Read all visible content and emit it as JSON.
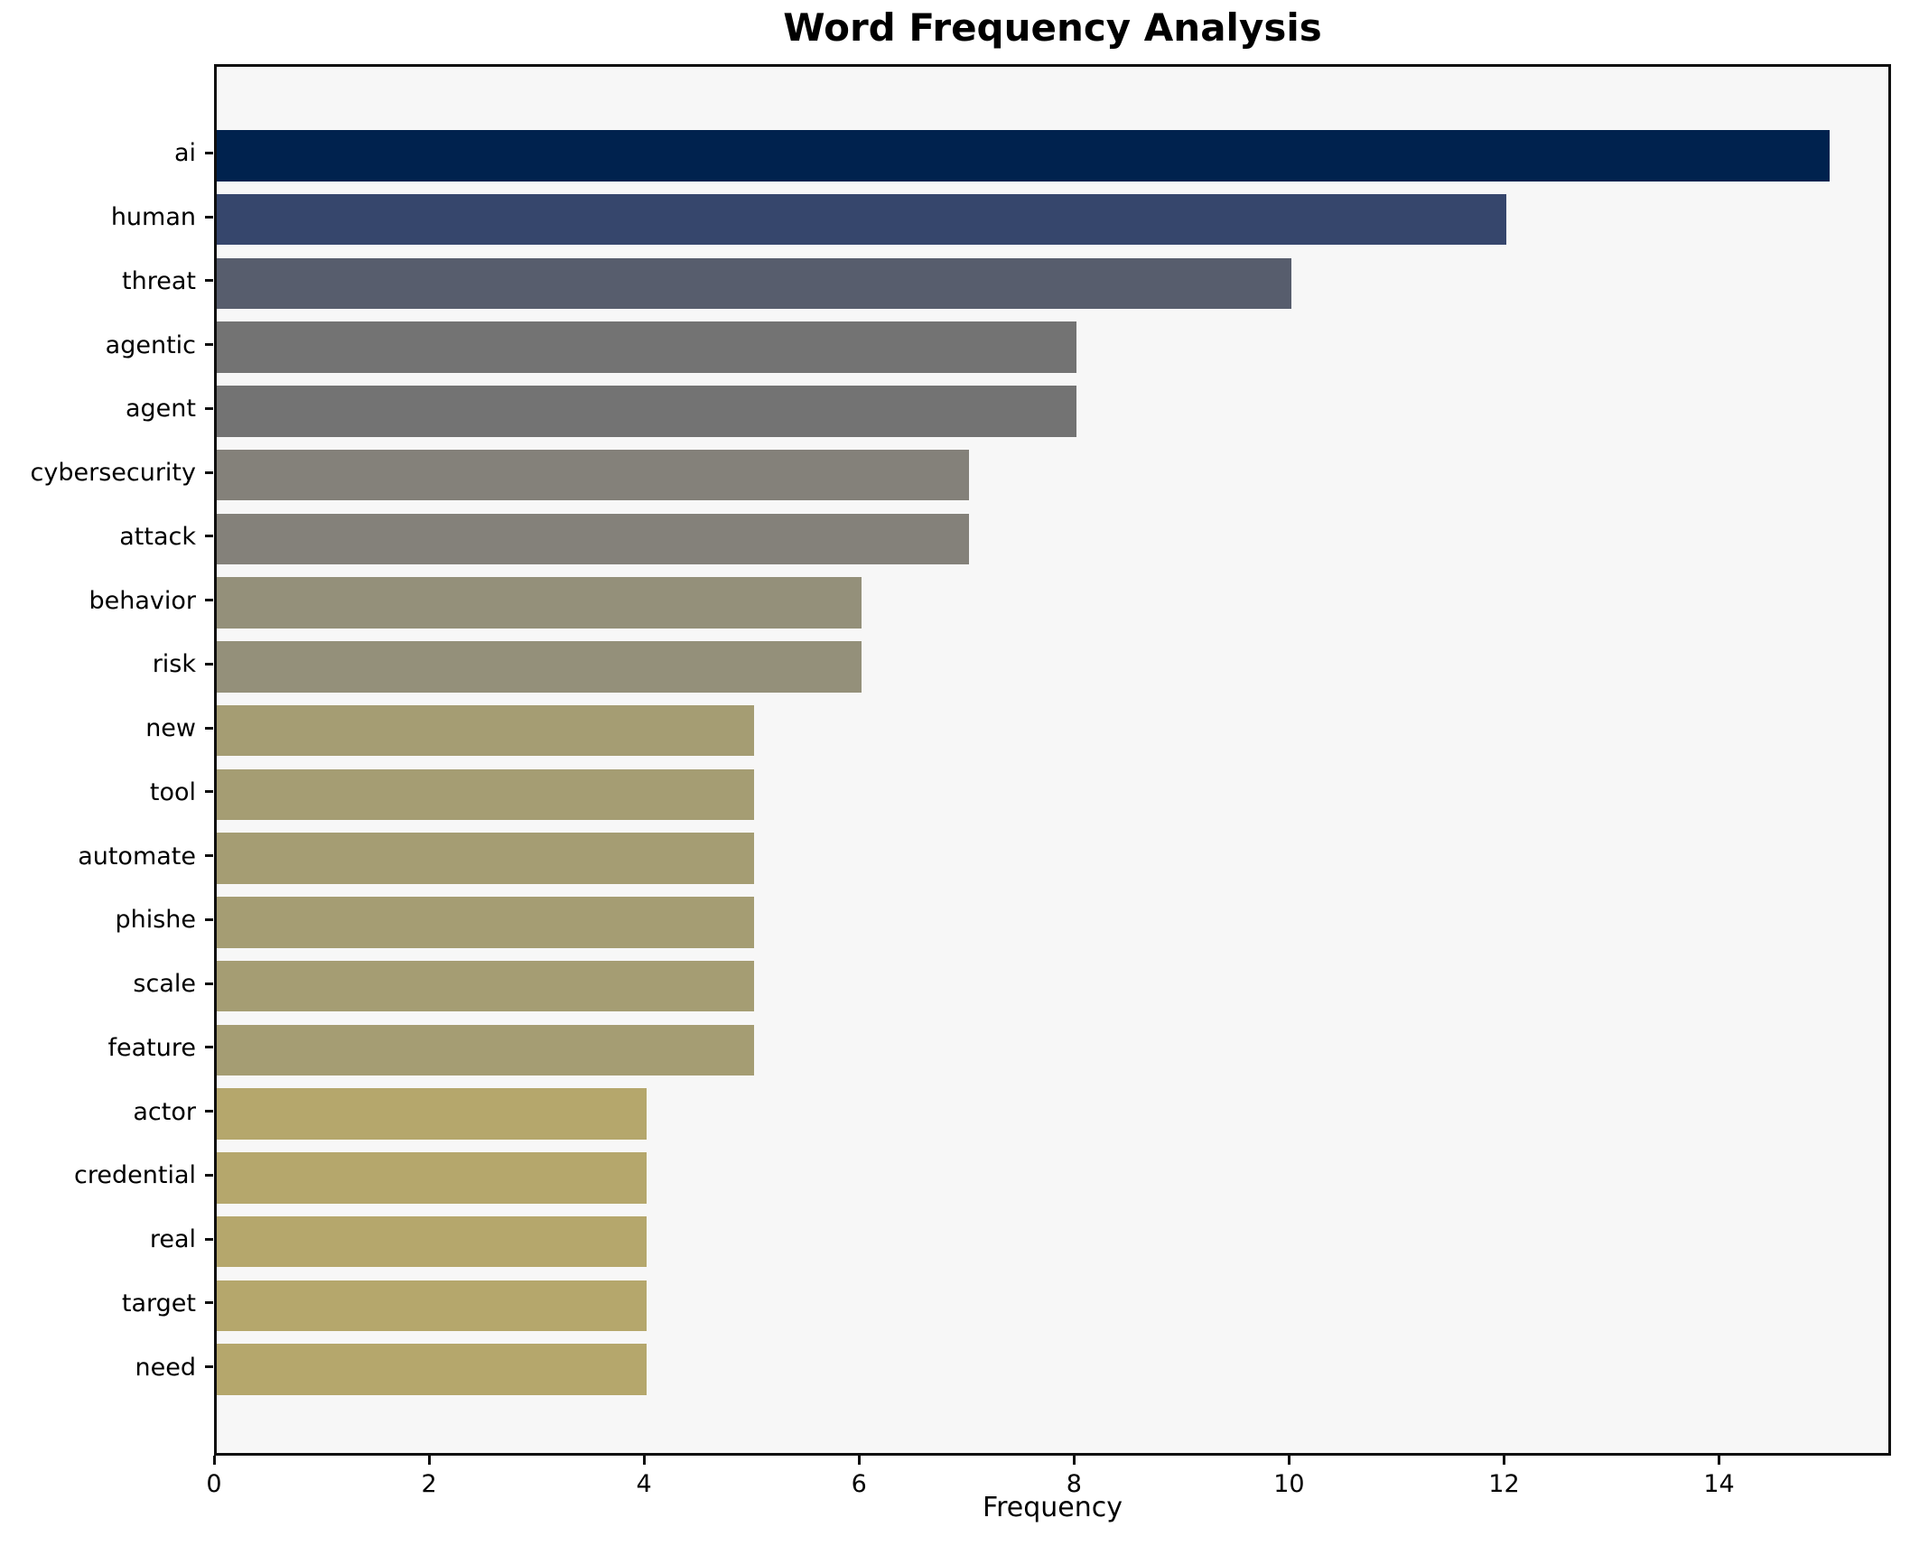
{
  "chart_data": {
    "type": "bar",
    "orientation": "horizontal",
    "title": "Word Frequency Analysis",
    "xlabel": "Frequency",
    "ylabel": "",
    "categories": [
      "ai",
      "human",
      "threat",
      "agentic",
      "agent",
      "cybersecurity",
      "attack",
      "behavior",
      "risk",
      "new",
      "tool",
      "automate",
      "phishe",
      "scale",
      "feature",
      "actor",
      "credential",
      "real",
      "target",
      "need"
    ],
    "values": [
      15,
      12,
      10,
      8,
      8,
      7,
      7,
      6,
      6,
      5,
      5,
      5,
      5,
      5,
      5,
      4,
      4,
      4,
      4,
      4
    ],
    "bar_colors": [
      "#00224E",
      "#36466C",
      "#575D6D",
      "#737373",
      "#737373",
      "#84817A",
      "#84817A",
      "#94907A",
      "#94907A",
      "#A59D73",
      "#A59D73",
      "#A59D73",
      "#A59D73",
      "#A59D73",
      "#A59D73",
      "#B5A76C",
      "#B5A76C",
      "#B5A76C",
      "#B5A76C",
      "#B5A76C"
    ],
    "colormap": "cividis",
    "xticks": [
      0,
      2,
      4,
      6,
      8,
      10,
      12,
      14
    ],
    "xlim": [
      0,
      15.6
    ],
    "grid": false,
    "legend": "none",
    "plot_background": "#f7f7f7",
    "figure_background": "#ffffff",
    "spine_color": "#0f0f0f",
    "bar_height_fraction": 0.8
  }
}
